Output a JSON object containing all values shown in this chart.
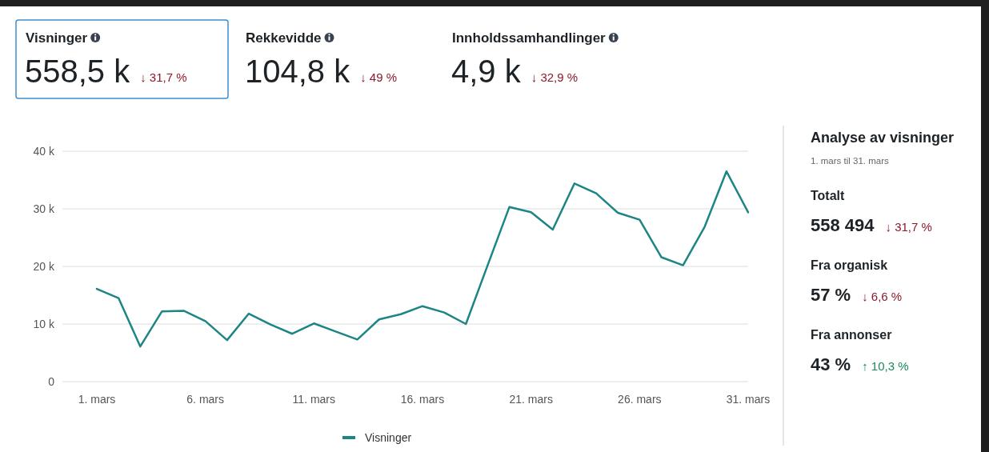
{
  "chart_data": [
    {
      "type": "other",
      "title": "Visninger",
      "annotations": [
        "558,5 k",
        "↓ 31,7 %"
      ],
      "colors": [
        "#1d2226",
        "#8b1a2b"
      ]
    },
    {
      "type": "other",
      "title": "Rekkevidde",
      "annotations": [
        "104,8 k",
        "↓ 49 %"
      ],
      "colors": [
        "#1d2226",
        "#8b1a2b"
      ]
    },
    {
      "type": "other",
      "title": "Innholdssamhandlinger",
      "annotations": [
        "4,9 k",
        "↓ 32,9 %"
      ],
      "colors": [
        "#1d2226",
        "#8b1a2b"
      ]
    },
    {
      "type": "line",
      "categories": [
        "1. mars",
        null,
        null,
        null,
        null,
        "6. mars",
        null,
        null,
        null,
        null,
        "11. mars",
        null,
        null,
        null,
        null,
        "16. mars",
        null,
        null,
        null,
        null,
        "21. mars",
        null,
        null,
        null,
        null,
        "26. mars",
        null,
        null,
        null,
        null,
        "31. mars"
      ],
      "series": [
        {
          "name": "Visninger",
          "color": "#1e8585",
          "values": [
            16100,
            14500,
            6100,
            12200,
            12300,
            10500,
            7200,
            11800,
            9900,
            8300,
            10100,
            8700,
            7300,
            10800,
            11700,
            13100,
            12000,
            10000,
            20200,
            30300,
            29400,
            26400,
            34400,
            32700,
            29300,
            28100,
            21600,
            20200,
            26900,
            36500,
            29400
          ]
        }
      ],
      "ylim": [
        0,
        40000
      ],
      "yticks": [
        {
          "value": 0,
          "label": "0"
        },
        {
          "value": 10000,
          "label": "10 k"
        },
        {
          "value": 20000,
          "label": "20 k"
        },
        {
          "value": 30000,
          "label": "30 k"
        },
        {
          "value": 40000,
          "label": "40 k"
        }
      ],
      "grid": "y",
      "legend": "bottom"
    },
    {
      "type": "other",
      "title": "Analyse av visninger",
      "subtitle": "1. mars til 31. mars",
      "annotations": [
        "Totalt",
        "558 494",
        "↓ 31,7 %",
        "Fra organisk",
        "57 %",
        "↓ 6,6 %",
        "Fra annonser",
        "43 %",
        "↑ 10,3 %"
      ],
      "colors": [
        "#1d2226",
        "#1d2226",
        "#8b1a2b",
        "#1d2226",
        "#1d2226",
        "#8b1a2b",
        "#1d2226",
        "#1d2226",
        "#1a8a5a"
      ]
    }
  ]
}
